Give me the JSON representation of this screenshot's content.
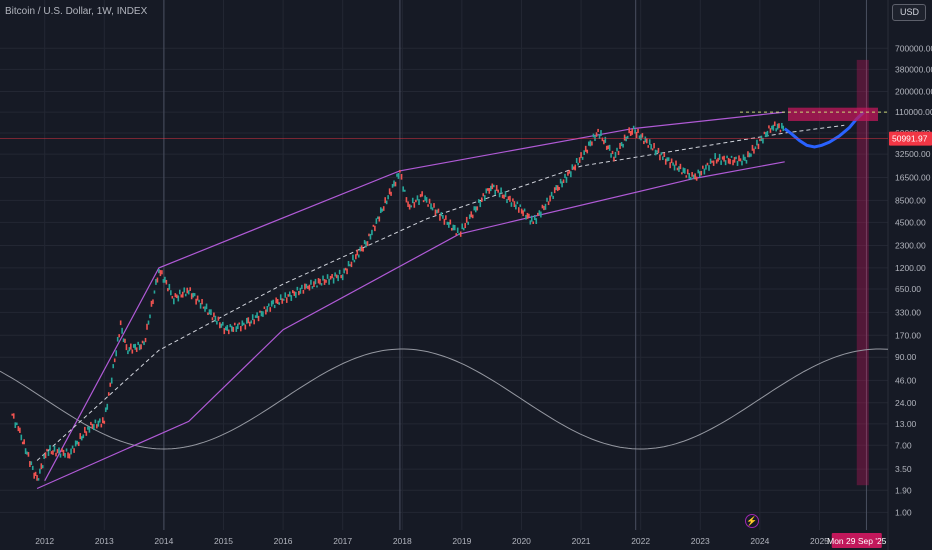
{
  "header": {
    "title": "Bitcoin / U.S. Dollar, 1W, INDEX",
    "currency_button": "USD"
  },
  "flash_icon": "lightning-icon",
  "colors": {
    "background": "#161a25",
    "grid": "#232733",
    "axis_text": "#b2b5be",
    "price_line": "#f23645",
    "channel": "#b05ad6",
    "projection": "#2962ff",
    "highlight_band": "#c2185b",
    "cycle": "#9598a1"
  },
  "chart_data": {
    "type": "line",
    "title": "Bitcoin / U.S. Dollar, 1W, INDEX",
    "xlabel": "",
    "ylabel": "",
    "y_scale": "log",
    "grid": true,
    "x_ticks": [
      "2012",
      "2013",
      "2014",
      "2015",
      "2016",
      "2017",
      "2018",
      "2019",
      "2020",
      "2021",
      "2022",
      "2023",
      "2024",
      "2025"
    ],
    "y_ticks": [
      "700000.00",
      "380000.00",
      "200000.00",
      "110000.00",
      "60000.00",
      "32500.00",
      "16500.00",
      "8500.00",
      "4500.00",
      "2300.00",
      "1200.00",
      "650.00",
      "330.00",
      "170.00",
      "90.00",
      "46.00",
      "24.00",
      "13.00",
      "7.00",
      "3.50",
      "1.90",
      "1.00"
    ],
    "last_price_label": "50991.97",
    "last_price": 50991.97,
    "crosshair_date_label": "Mon 29 Sep '25",
    "target_zone": [
      85000,
      125000
    ],
    "target_date": "2025-09-29",
    "series": [
      {
        "style": "candles",
        "points": [
          [
            "2011-06-15",
            17
          ],
          [
            "2011-08-01",
            10
          ],
          [
            "2011-11-15",
            2.5
          ],
          [
            "2012-01-15",
            6
          ],
          [
            "2012-06-01",
            5.5
          ],
          [
            "2012-10-01",
            12
          ],
          [
            "2013-01-01",
            14
          ],
          [
            "2013-04-10",
            230
          ],
          [
            "2013-05-15",
            110
          ],
          [
            "2013-09-01",
            130
          ],
          [
            "2013-12-01",
            1150
          ],
          [
            "2014-03-01",
            500
          ],
          [
            "2014-06-01",
            620
          ],
          [
            "2015-01-15",
            200
          ],
          [
            "2015-06-01",
            240
          ],
          [
            "2015-11-01",
            420
          ],
          [
            "2016-06-01",
            700
          ],
          [
            "2017-01-01",
            1000
          ],
          [
            "2017-06-01",
            2600
          ],
          [
            "2017-12-17",
            19500
          ],
          [
            "2018-02-06",
            7000
          ],
          [
            "2018-05-01",
            9500
          ],
          [
            "2018-12-15",
            3200
          ],
          [
            "2019-06-26",
            13000
          ],
          [
            "2019-12-15",
            7000
          ],
          [
            "2020-03-12",
            4500
          ],
          [
            "2020-08-01",
            11500
          ],
          [
            "2021-01-01",
            29000
          ],
          [
            "2021-04-14",
            63000
          ],
          [
            "2021-07-20",
            30000
          ],
          [
            "2021-11-10",
            68000
          ],
          [
            "2022-05-15",
            30000
          ],
          [
            "2022-11-21",
            16000
          ],
          [
            "2023-04-01",
            28000
          ],
          [
            "2023-10-01",
            27000
          ],
          [
            "2024-03-14",
            73000
          ],
          [
            "2024-06-01",
            68000
          ]
        ]
      },
      {
        "style": "projection",
        "points": [
          [
            "2024-06-01",
            68000
          ],
          [
            "2024-07-15",
            58000
          ],
          [
            "2024-09-01",
            48000
          ],
          [
            "2024-10-15",
            42000
          ],
          [
            "2024-12-01",
            40000
          ],
          [
            "2025-01-15",
            42000
          ],
          [
            "2025-03-01",
            46000
          ],
          [
            "2025-05-01",
            55000
          ],
          [
            "2025-07-01",
            70000
          ],
          [
            "2025-08-15",
            90000
          ],
          [
            "2025-09-29",
            110000
          ]
        ]
      }
    ],
    "channel": {
      "upper": [
        [
          "2012-01-01",
          2.5
        ],
        [
          "2013-12-01",
          1200
        ],
        [
          "2017-12-15",
          20000
        ],
        [
          "2021-11-10",
          68000
        ],
        [
          "2024-06-01",
          110000
        ]
      ],
      "lower": [
        [
          "2011-11-15",
          2
        ],
        [
          "2014-06-01",
          14
        ],
        [
          "2016-01-01",
          200
        ],
        [
          "2018-12-15",
          3200
        ],
        [
          "2022-11-21",
          16000
        ],
        [
          "2024-06-01",
          26000
        ]
      ],
      "mid": [
        [
          "2011-11-15",
          4.5
        ],
        [
          "2013-12-01",
          110
        ],
        [
          "2016-01-01",
          750
        ],
        [
          "2018-06-01",
          5000
        ],
        [
          "2021-01-01",
          23000
        ],
        [
          "2024-06-01",
          60000
        ],
        [
          "2025-06-01",
          75000
        ]
      ]
    }
  }
}
